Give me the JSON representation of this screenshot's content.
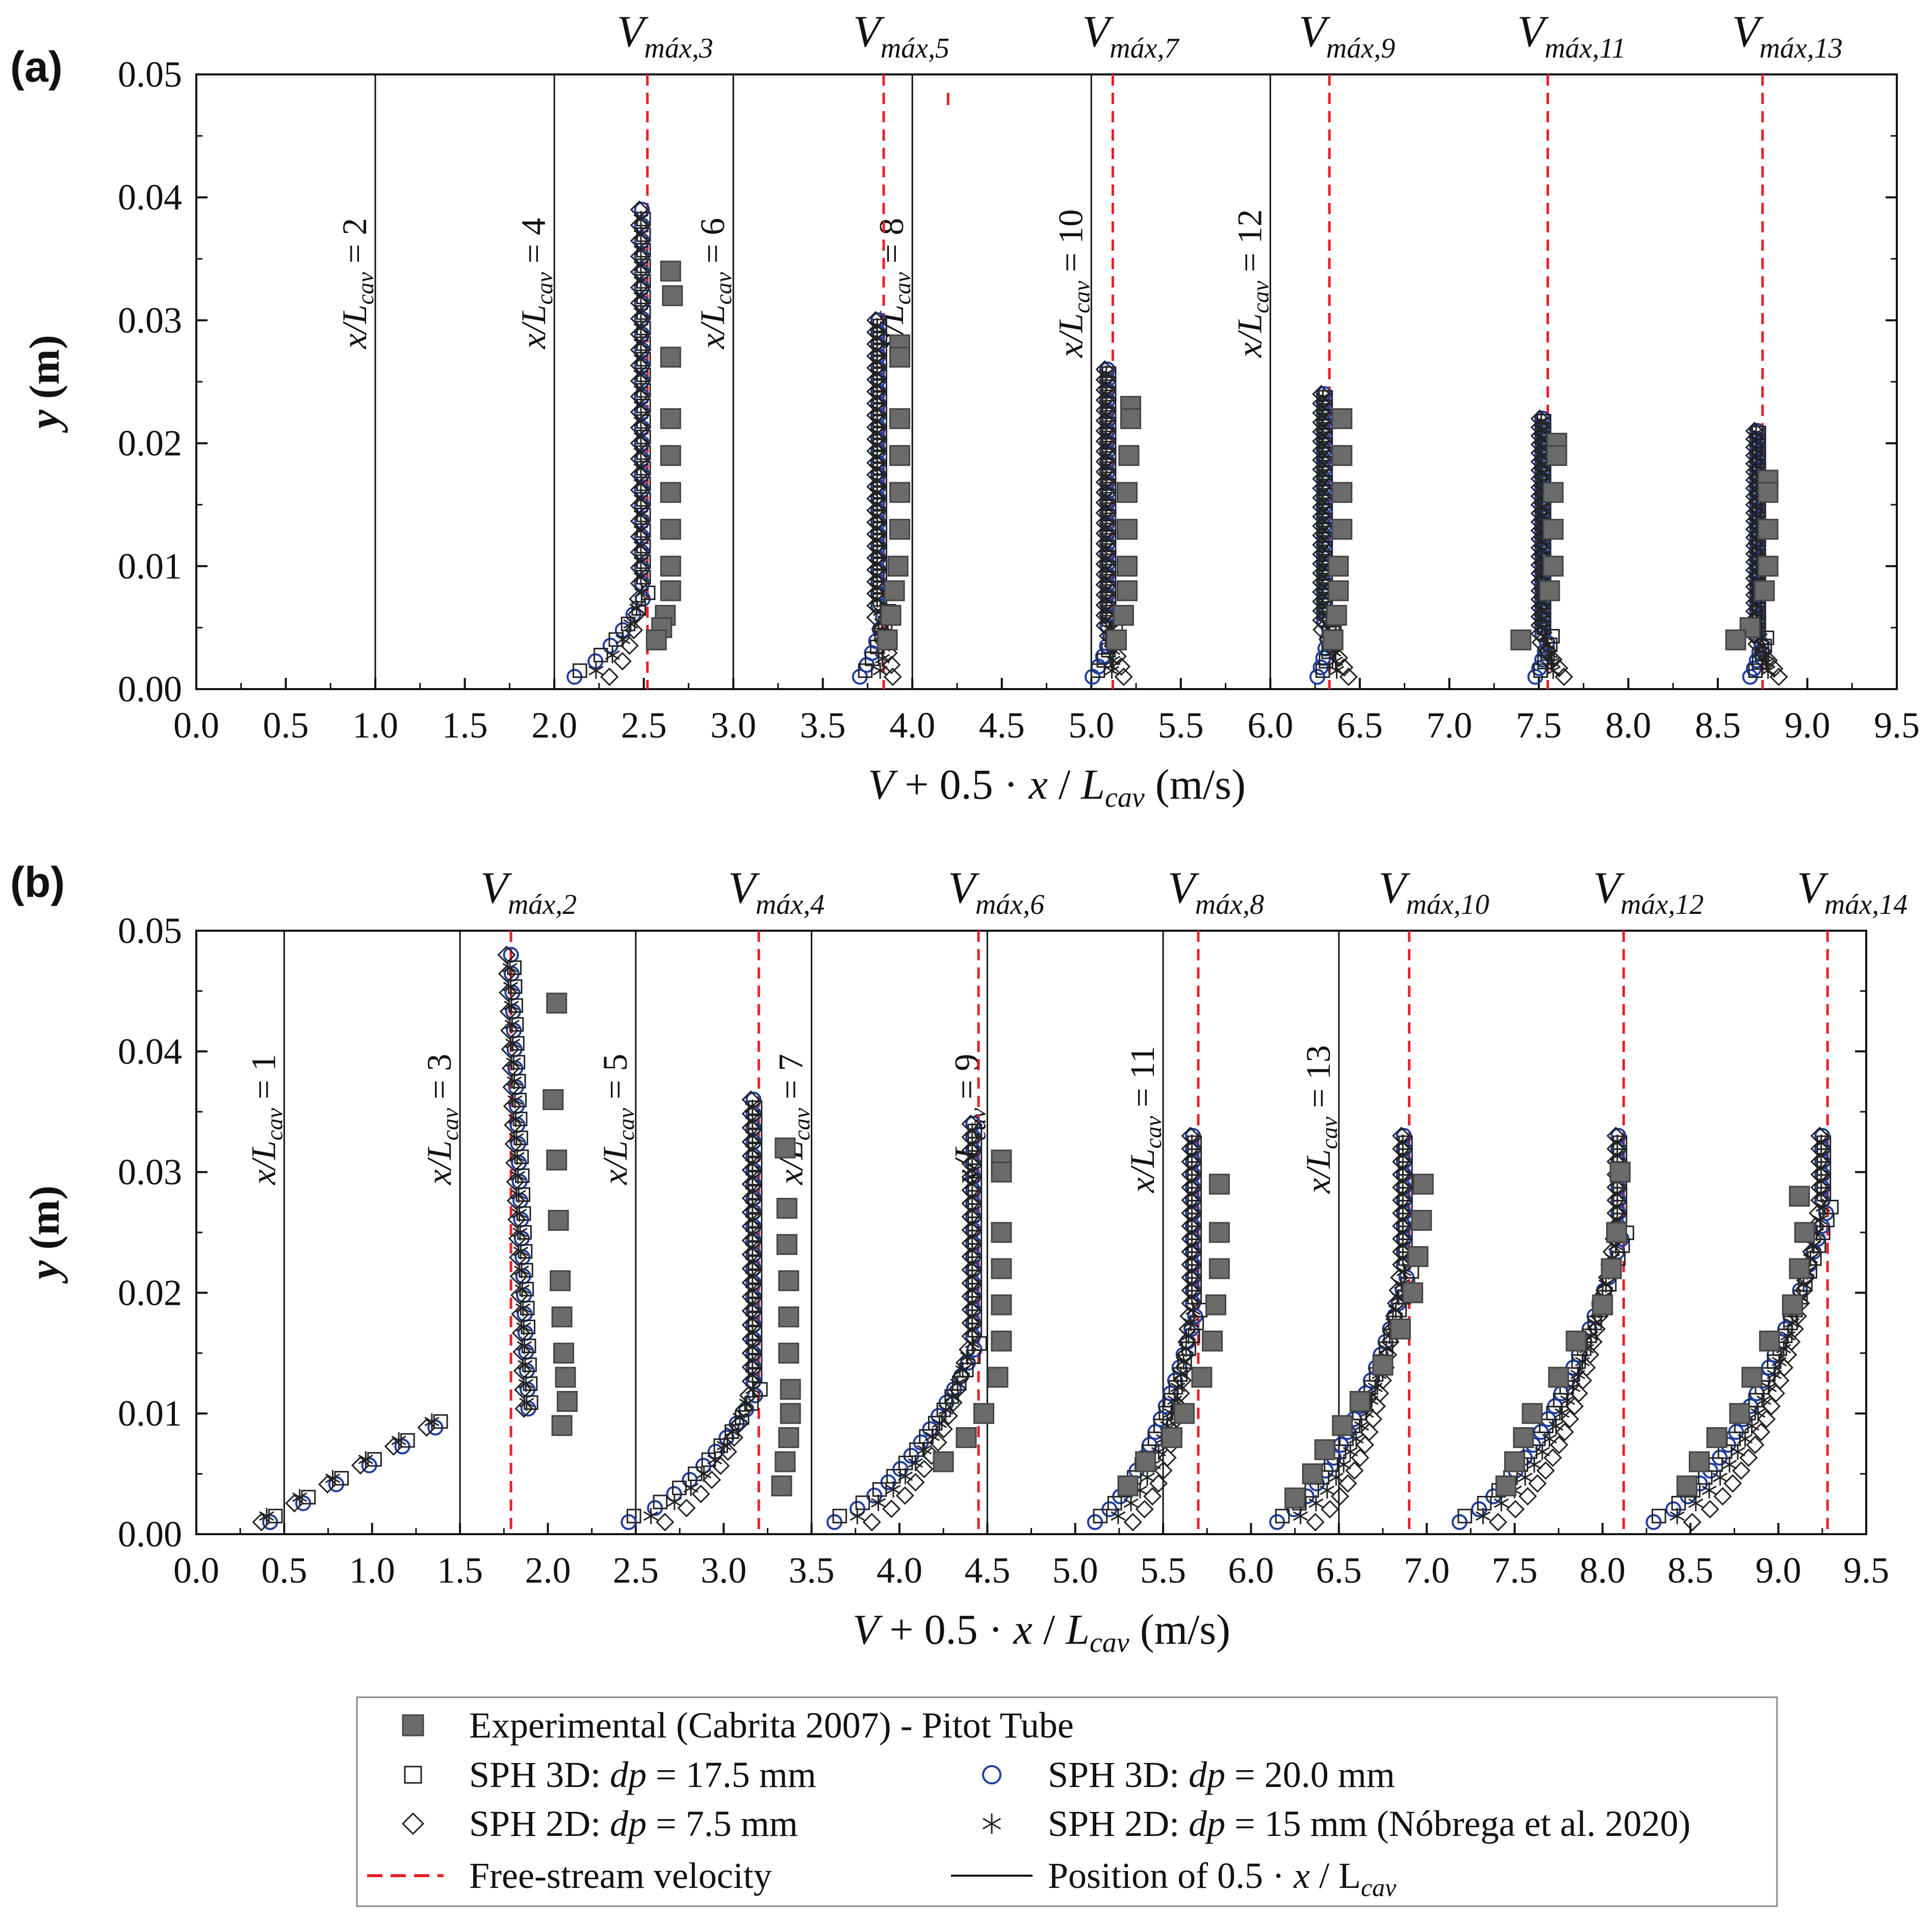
{
  "chart_data": {
    "type": "scatter",
    "figure_description_panels": 2,
    "x_axis": {
      "title": "V + 0.5 · x / L",
      "title_subscript": "cav",
      "title_unit": "(m/s)",
      "range": [
        0.0,
        9.5
      ],
      "ticks": [
        "0.0",
        "0.5",
        "1.0",
        "1.5",
        "2.0",
        "2.5",
        "3.0",
        "3.5",
        "4.0",
        "4.5",
        "5.0",
        "5.5",
        "6.0",
        "6.5",
        "7.0",
        "7.5",
        "8.0",
        "8.5",
        "9.0",
        "9.5"
      ]
    },
    "y_axis": {
      "title": "y (m)",
      "range": [
        0.0,
        0.05
      ],
      "ticks": [
        "0.00",
        "0.01",
        "0.02",
        "0.03",
        "0.04",
        "0.05"
      ]
    },
    "panels": [
      {
        "label": "(a)",
        "position_lines": [
          {
            "x": 1.0,
            "text": "x/L",
            "sub": "cav",
            "eq": " = 2"
          },
          {
            "x": 2.0,
            "text": "x/L",
            "sub": "cav",
            "eq": " = 4"
          },
          {
            "x": 3.0,
            "text": "x/L",
            "sub": "cav",
            "eq": " = 6"
          },
          {
            "x": 4.0,
            "text": "x/L",
            "sub": "cav",
            "eq": " = 8"
          },
          {
            "x": 5.0,
            "text": "x/L",
            "sub": "cav",
            "eq": " = 10"
          },
          {
            "x": 6.0,
            "text": "x/L",
            "sub": "cav",
            "eq": " = 12"
          }
        ],
        "vmax_lines": [
          {
            "x": 2.52,
            "main": "V",
            "sub": "máx,3"
          },
          {
            "x": 3.84,
            "main": "V",
            "sub": "máx,5"
          },
          {
            "x": 5.12,
            "main": "V",
            "sub": "máx,7"
          },
          {
            "x": 6.33,
            "main": "V",
            "sub": "máx,9"
          },
          {
            "x": 7.55,
            "main": "V",
            "sub": "máx,11"
          },
          {
            "x": 8.75,
            "main": "V",
            "sub": "máx,13"
          }
        ],
        "experimental": [
          {
            "base": 2.0,
            "points": [
              [
                2.65,
                0.034
              ],
              [
                2.66,
                0.032
              ],
              [
                2.65,
                0.027
              ],
              [
                2.65,
                0.022
              ],
              [
                2.65,
                0.019
              ],
              [
                2.65,
                0.016
              ],
              [
                2.65,
                0.013
              ],
              [
                2.65,
                0.01
              ],
              [
                2.65,
                0.008
              ],
              [
                2.62,
                0.006
              ],
              [
                2.6,
                0.005
              ],
              [
                2.57,
                0.004
              ]
            ]
          },
          {
            "base": 3.0,
            "points": [
              [
                3.93,
                0.028
              ],
              [
                3.93,
                0.027
              ],
              [
                3.93,
                0.022
              ],
              [
                3.93,
                0.019
              ],
              [
                3.93,
                0.016
              ],
              [
                3.93,
                0.013
              ],
              [
                3.92,
                0.01
              ],
              [
                3.9,
                0.008
              ],
              [
                3.88,
                0.006
              ],
              [
                3.86,
                0.004
              ]
            ]
          },
          {
            "base": 4.0,
            "points": [
              [
                5.22,
                0.023
              ],
              [
                5.22,
                0.022
              ],
              [
                5.21,
                0.019
              ],
              [
                5.2,
                0.016
              ],
              [
                5.2,
                0.013
              ],
              [
                5.2,
                0.01
              ],
              [
                5.2,
                0.008
              ],
              [
                5.18,
                0.006
              ],
              [
                5.14,
                0.004
              ]
            ]
          },
          {
            "base": 5.0,
            "points": [
              [
                6.4,
                0.022
              ],
              [
                6.4,
                0.019
              ],
              [
                6.4,
                0.016
              ],
              [
                6.4,
                0.013
              ],
              [
                6.38,
                0.01
              ],
              [
                6.38,
                0.008
              ],
              [
                6.37,
                0.006
              ],
              [
                6.35,
                0.004
              ]
            ]
          },
          {
            "base": 6.0,
            "points": [
              [
                7.6,
                0.02
              ],
              [
                7.6,
                0.019
              ],
              [
                7.58,
                0.016
              ],
              [
                7.58,
                0.013
              ],
              [
                7.58,
                0.01
              ],
              [
                7.56,
                0.008
              ],
              [
                7.4,
                0.004
              ]
            ]
          },
          {
            "base": 7.0,
            "points": [
              [
                8.78,
                0.017
              ],
              [
                8.78,
                0.016
              ],
              [
                8.78,
                0.013
              ],
              [
                8.78,
                0.01
              ],
              [
                8.76,
                0.008
              ],
              [
                8.68,
                0.005
              ],
              [
                8.6,
                0.004
              ]
            ]
          }
        ],
        "sph_profiles": [
          {
            "base": 1.0,
            "vmax": 2.52,
            "ymax": 0.039,
            "bl": 0.008,
            "vmin": 1.85
          },
          {
            "base": 3.0,
            "vmax": 3.84,
            "ymax": 0.03,
            "bl": 0.006,
            "vmin": 3.6
          },
          {
            "base": 4.0,
            "vmax": 5.12,
            "ymax": 0.026,
            "bl": 0.005,
            "vmin": 4.9
          },
          {
            "base": 5.0,
            "vmax": 6.33,
            "ymax": 0.024,
            "bl": 0.005,
            "vmin": 6.2
          },
          {
            "base": 6.0,
            "vmax": 7.55,
            "ymax": 0.022,
            "bl": 0.004,
            "vmin": 7.4
          },
          {
            "base": 7.0,
            "vmax": 8.75,
            "ymax": 0.021,
            "bl": 0.004,
            "vmin": 8.6
          }
        ],
        "extra_dash": {
          "x": 4.2,
          "y1": 0.0485,
          "y2": 0.0475
        }
      },
      {
        "label": "(b)",
        "position_lines": [
          {
            "x": 0.5,
            "text": "x/L",
            "sub": "cav",
            "eq": " = 1"
          },
          {
            "x": 1.5,
            "text": "x/L",
            "sub": "cav",
            "eq": " = 3"
          },
          {
            "x": 2.5,
            "text": "x/L",
            "sub": "cav",
            "eq": " = 5"
          },
          {
            "x": 3.5,
            "text": "x/L",
            "sub": "cav",
            "eq": " = 7"
          },
          {
            "x": 4.5,
            "text": "x/L",
            "sub": "cav",
            "eq": " = 9"
          },
          {
            "x": 5.5,
            "text": "x/L",
            "sub": "cav",
            "eq": " = 11"
          },
          {
            "x": 6.5,
            "text": "x/L",
            "sub": "cav",
            "eq": " = 13"
          }
        ],
        "vmax_lines": [
          {
            "x": 1.79,
            "main": "V",
            "sub": "máx,2"
          },
          {
            "x": 3.2,
            "main": "V",
            "sub": "máx,4"
          },
          {
            "x": 4.45,
            "main": "V",
            "sub": "máx,6"
          },
          {
            "x": 5.7,
            "main": "V",
            "sub": "máx,8"
          },
          {
            "x": 6.9,
            "main": "V",
            "sub": "máx,10"
          },
          {
            "x": 8.12,
            "main": "V",
            "sub": "máx,12"
          },
          {
            "x": 9.28,
            "main": "V",
            "sub": "máx,14"
          }
        ],
        "experimental": [
          {
            "base": 1.5,
            "points": [
              [
                2.05,
                0.044
              ],
              [
                2.03,
                0.036
              ],
              [
                2.05,
                0.031
              ],
              [
                2.06,
                0.026
              ],
              [
                2.07,
                0.021
              ],
              [
                2.08,
                0.018
              ],
              [
                2.09,
                0.015
              ],
              [
                2.1,
                0.013
              ],
              [
                2.11,
                0.011
              ],
              [
                2.08,
                0.009
              ]
            ]
          },
          {
            "base": 2.5,
            "points": [
              [
                3.35,
                0.032
              ],
              [
                3.36,
                0.027
              ],
              [
                3.36,
                0.024
              ],
              [
                3.37,
                0.021
              ],
              [
                3.37,
                0.018
              ],
              [
                3.37,
                0.015
              ],
              [
                3.38,
                0.012
              ],
              [
                3.38,
                0.01
              ],
              [
                3.37,
                0.008
              ],
              [
                3.35,
                0.006
              ],
              [
                3.33,
                0.004
              ]
            ]
          },
          {
            "base": 3.5,
            "points": [
              [
                4.58,
                0.031
              ],
              [
                4.58,
                0.03
              ],
              [
                4.58,
                0.025
              ],
              [
                4.58,
                0.022
              ],
              [
                4.58,
                0.019
              ],
              [
                4.58,
                0.016
              ],
              [
                4.56,
                0.013
              ],
              [
                4.48,
                0.01
              ],
              [
                4.38,
                0.008
              ],
              [
                4.25,
                0.006
              ]
            ]
          },
          {
            "base": 4.5,
            "points": [
              [
                5.82,
                0.029
              ],
              [
                5.82,
                0.025
              ],
              [
                5.82,
                0.022
              ],
              [
                5.8,
                0.019
              ],
              [
                5.78,
                0.016
              ],
              [
                5.72,
                0.013
              ],
              [
                5.62,
                0.01
              ],
              [
                5.55,
                0.008
              ],
              [
                5.4,
                0.006
              ],
              [
                5.3,
                0.004
              ]
            ]
          },
          {
            "base": 5.5,
            "points": [
              [
                6.98,
                0.029
              ],
              [
                6.97,
                0.026
              ],
              [
                6.95,
                0.023
              ],
              [
                6.92,
                0.02
              ],
              [
                6.85,
                0.017
              ],
              [
                6.75,
                0.014
              ],
              [
                6.62,
                0.011
              ],
              [
                6.52,
                0.009
              ],
              [
                6.42,
                0.007
              ],
              [
                6.35,
                0.005
              ],
              [
                6.25,
                0.003
              ]
            ]
          },
          {
            "base": 6.5,
            "points": [
              [
                8.1,
                0.03
              ],
              [
                8.08,
                0.025
              ],
              [
                8.05,
                0.022
              ],
              [
                8.0,
                0.019
              ],
              [
                7.85,
                0.016
              ],
              [
                7.75,
                0.013
              ],
              [
                7.6,
                0.01
              ],
              [
                7.55,
                0.008
              ],
              [
                7.5,
                0.006
              ],
              [
                7.45,
                0.004
              ]
            ]
          },
          {
            "base": 7.5,
            "points": [
              [
                9.12,
                0.028
              ],
              [
                9.15,
                0.025
              ],
              [
                9.12,
                0.022
              ],
              [
                9.08,
                0.019
              ],
              [
                8.95,
                0.016
              ],
              [
                8.85,
                0.013
              ],
              [
                8.78,
                0.01
              ],
              [
                8.65,
                0.008
              ],
              [
                8.55,
                0.006
              ],
              [
                8.48,
                0.004
              ]
            ]
          }
        ],
        "sph_profiles": [
          {
            "base": 0.5,
            "vmax": 1.79,
            "ymax": 0.048,
            "bl": 0.01,
            "vmin": 0.3,
            "kind": "tail"
          },
          {
            "base": 2.5,
            "vmax": 3.2,
            "ymax": 0.036,
            "bl": 0.012,
            "vmin": 2.1,
            "kind": "gradual"
          },
          {
            "base": 3.5,
            "vmax": 4.45,
            "ymax": 0.034,
            "bl": 0.016,
            "vmin": 3.3,
            "kind": "gradual"
          },
          {
            "base": 4.5,
            "vmax": 5.7,
            "ymax": 0.033,
            "bl": 0.019,
            "vmin": 4.9,
            "kind": "gradual"
          },
          {
            "base": 5.5,
            "vmax": 6.9,
            "ymax": 0.033,
            "bl": 0.022,
            "vmin": 5.9,
            "kind": "gradual"
          },
          {
            "base": 6.5,
            "vmax": 8.12,
            "ymax": 0.033,
            "bl": 0.025,
            "vmin": 6.9,
            "kind": "gradual"
          },
          {
            "base": 7.5,
            "vmax": 9.28,
            "ymax": 0.033,
            "bl": 0.027,
            "vmin": 8.0,
            "kind": "gradual"
          }
        ]
      }
    ],
    "legend": {
      "items": [
        {
          "marker": "filled-square",
          "text": "Experimental (Cabrita 2007) - Pitot Tube"
        },
        {
          "marker": "open-square",
          "text_pre": "SPH 3D: ",
          "text_it": "dp",
          "text_post": " = 17.5 mm"
        },
        {
          "marker": "open-circle",
          "text_pre": "SPH 3D: ",
          "text_it": "dp",
          "text_post": " = 20.0 mm"
        },
        {
          "marker": "open-diamond",
          "text_pre": "SPH 2D: ",
          "text_it": "dp",
          "text_post": " = 7.5 mm"
        },
        {
          "marker": "asterisk",
          "text_pre": "SPH 2D: ",
          "text_it": "dp",
          "text_post": " = 15 mm (Nóbrega et al. 2020)"
        },
        {
          "marker": "red-dash",
          "text": "Free-stream velocity"
        },
        {
          "marker": "black-line",
          "text_pre": "Position of 0.5 · ",
          "text_it": "x",
          "text_post": " / L",
          "text_sub": "cav"
        }
      ]
    },
    "colors": {
      "experimental": "#6b6b6b",
      "circle": "#1f3f9e",
      "free_stream": "#e8202a",
      "line": "#111111"
    }
  }
}
